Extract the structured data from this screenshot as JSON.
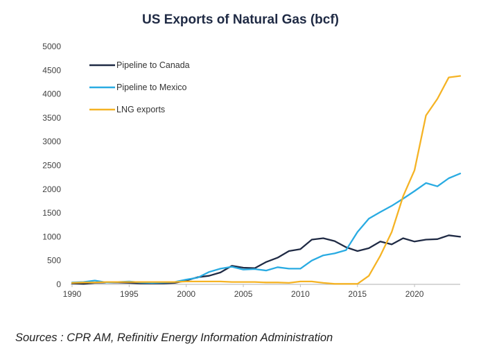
{
  "chart_data": {
    "type": "line",
    "title": "US Exports of Natural Gas (bcf)",
    "xlabel": "",
    "ylabel": "",
    "xlim": [
      1990,
      2024
    ],
    "ylim": [
      0,
      5000
    ],
    "x_ticks": [
      1990,
      1995,
      2000,
      2005,
      2010,
      2015,
      2020
    ],
    "y_ticks": [
      0,
      500,
      1000,
      1500,
      2000,
      2500,
      3000,
      3500,
      4000,
      4500,
      5000
    ],
    "grid": false,
    "legend_position": "top-left",
    "x": [
      1990,
      1991,
      1992,
      1993,
      1994,
      1995,
      1996,
      1997,
      1998,
      1999,
      2000,
      2001,
      2002,
      2003,
      2004,
      2005,
      2006,
      2007,
      2008,
      2009,
      2010,
      2011,
      2012,
      2013,
      2014,
      2015,
      2016,
      2017,
      2018,
      2019,
      2020,
      2021,
      2022,
      2023,
      2024
    ],
    "series": [
      {
        "name": "Pipeline to Canada",
        "color": "#1f2a44",
        "values": [
          20,
          10,
          30,
          40,
          40,
          30,
          20,
          20,
          20,
          30,
          80,
          150,
          180,
          250,
          390,
          350,
          340,
          470,
          560,
          700,
          740,
          940,
          970,
          910,
          780,
          700,
          760,
          900,
          840,
          970,
          900,
          940,
          950,
          1030,
          1000
        ]
      },
      {
        "name": "Pipeline to Mexico",
        "color": "#29abe2",
        "values": [
          40,
          50,
          80,
          40,
          50,
          60,
          40,
          30,
          40,
          50,
          100,
          140,
          260,
          330,
          370,
          310,
          320,
          290,
          360,
          330,
          330,
          500,
          610,
          650,
          720,
          1100,
          1380,
          1520,
          1650,
          1800,
          1960,
          2130,
          2060,
          2230,
          2330
        ]
      },
      {
        "name": "LNG exports",
        "color": "#f5b324",
        "values": [
          30,
          40,
          40,
          50,
          50,
          50,
          50,
          50,
          50,
          50,
          60,
          60,
          60,
          60,
          50,
          50,
          50,
          40,
          40,
          30,
          60,
          60,
          30,
          10,
          10,
          10,
          180,
          600,
          1100,
          1850,
          2400,
          3550,
          3900,
          4350,
          4380
        ]
      }
    ]
  },
  "source_text": "Sources : CPR AM, Refinitiv Energy Information Administration"
}
